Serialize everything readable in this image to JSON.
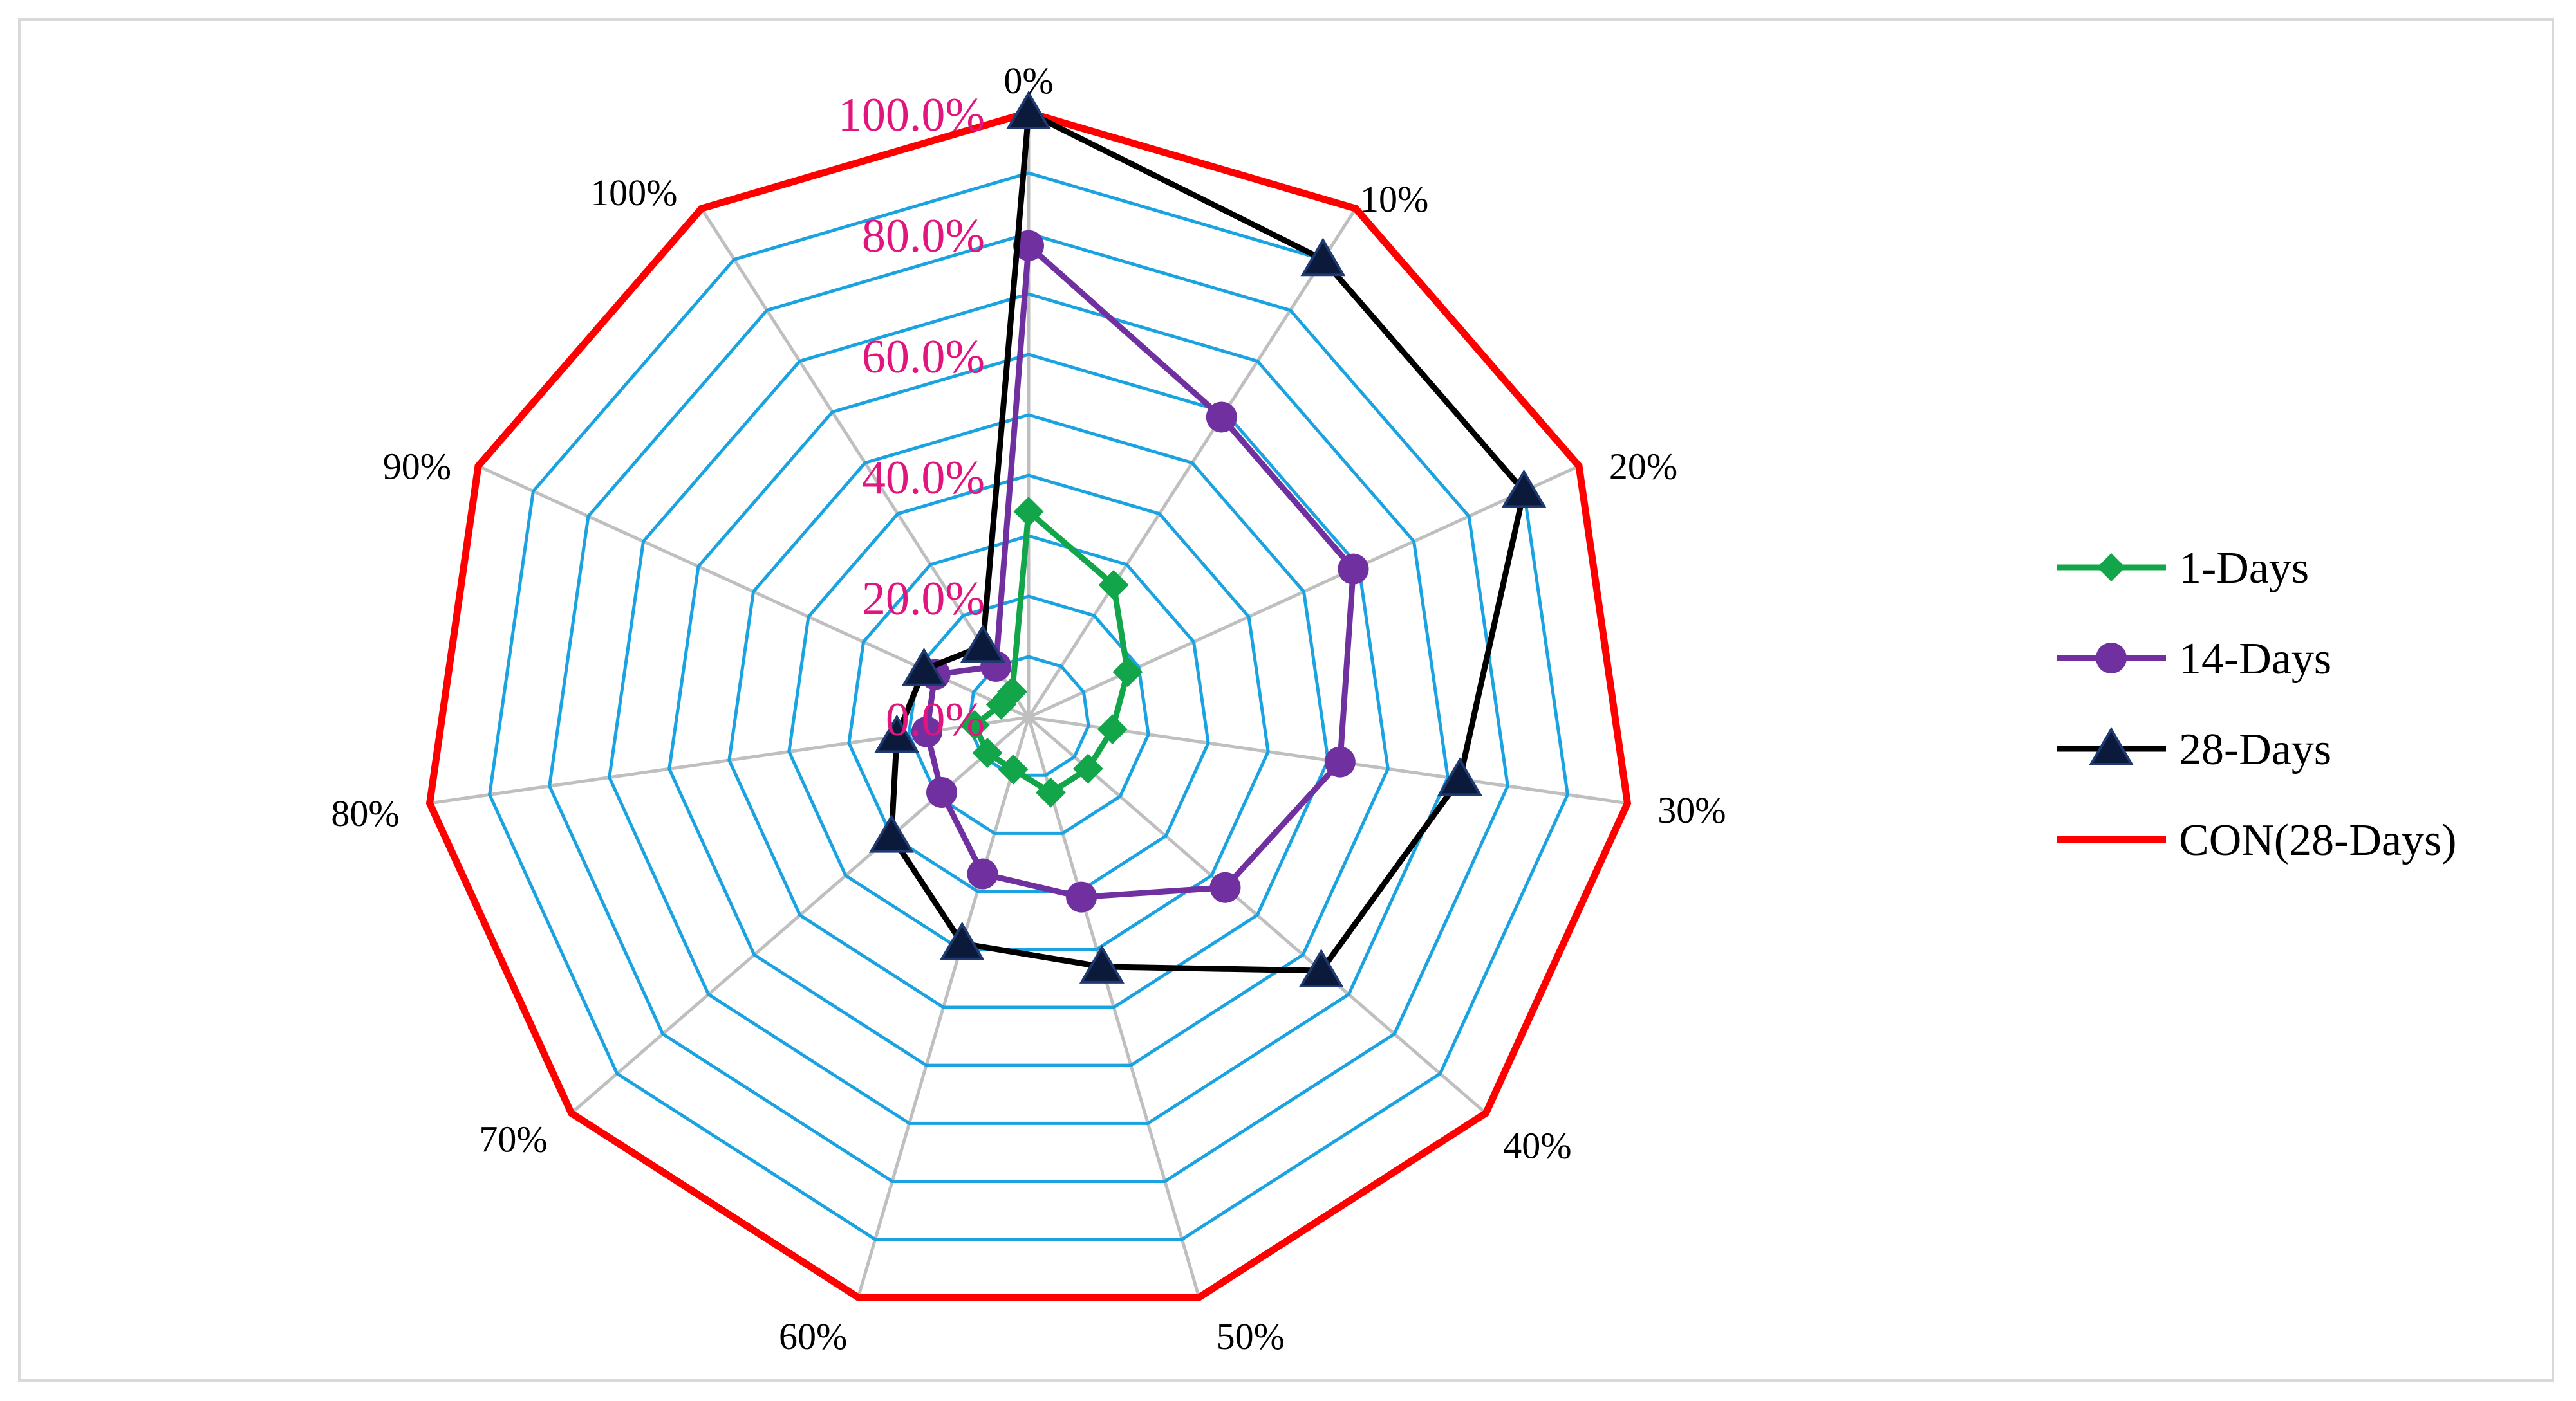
{
  "chart_data": {
    "type": "radar",
    "title": "",
    "categories": [
      "0%",
      "10%",
      "20%",
      "30%",
      "40%",
      "50%",
      "60%",
      "70%",
      "80%",
      "90%",
      "100%"
    ],
    "rlim": [
      0,
      100
    ],
    "radial_ticks": [
      {
        "value": 0,
        "label": "0.0%"
      },
      {
        "value": 20,
        "label": "20.0%"
      },
      {
        "value": 40,
        "label": "40.0%"
      },
      {
        "value": 60,
        "label": "60.0%"
      },
      {
        "value": 80,
        "label": "80.0%"
      },
      {
        "value": 100,
        "label": "100.0%"
      }
    ],
    "grid_color": "#1aa3e0",
    "spoke_color": "#bfbfbf",
    "tick_label_color": "#e0157d",
    "legend_position": "right",
    "series": [
      {
        "name": "1-Days",
        "color": "#13a54a",
        "marker": "diamond",
        "values": [
          34,
          26,
          18,
          14,
          13,
          13,
          9,
          9,
          9,
          5,
          5
        ]
      },
      {
        "name": "14-Days",
        "color": "#7030a0",
        "marker": "circle",
        "values": [
          78,
          59,
          59,
          52,
          43,
          31,
          27,
          19,
          17,
          17,
          10
        ]
      },
      {
        "name": "28-Days",
        "color": "#000000",
        "marker": "triangle",
        "values": [
          100,
          90,
          90,
          72,
          64,
          43,
          39,
          30,
          22,
          19,
          14
        ]
      },
      {
        "name": "CON(28-Days)",
        "color": "#ff0000",
        "marker": "none",
        "values": [
          100,
          100,
          100,
          100,
          100,
          100,
          100,
          100,
          100,
          100,
          100
        ]
      }
    ]
  }
}
